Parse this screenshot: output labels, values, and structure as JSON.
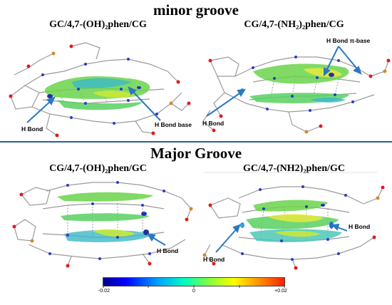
{
  "sections": {
    "minor_title": "minor groove",
    "major_title": "Major Groove"
  },
  "panels": {
    "p1": {
      "title": "GC/4,7-(OH)₂phen/CG",
      "annotations": [
        "H Bond",
        "H Bond base"
      ]
    },
    "p2": {
      "title": "CG/4,7-(NH₂)₂phen/CG",
      "annotations": [
        "H Bond π-base",
        "H Bond"
      ]
    },
    "p3": {
      "title": "CG/4,7-(OH)₂phen/GC",
      "annotations": [
        "H Bond"
      ]
    },
    "p4": {
      "title": "GC/4,7-(NH2)₂phen/GC",
      "annotations": [
        "H Bond",
        "H Bond"
      ]
    }
  },
  "colorbar": {
    "labels": [
      "-0.02",
      "0",
      "+0.02"
    ],
    "colors": [
      "#000090",
      "#0000ff",
      "#00a0ff",
      "#00ffc0",
      "#80ff40",
      "#ffff00",
      "#ff9000",
      "#ff2000"
    ]
  },
  "colors": {
    "arrow": "#2a78c0",
    "divider": "#2f5d9a",
    "bond": "#9a9a9a",
    "carbon": "#b0b0b0",
    "nitrogen": "#2a3acc",
    "oxygen": "#e01a1a",
    "phosphorus": "#d08a30",
    "surface": "#66dd55"
  }
}
